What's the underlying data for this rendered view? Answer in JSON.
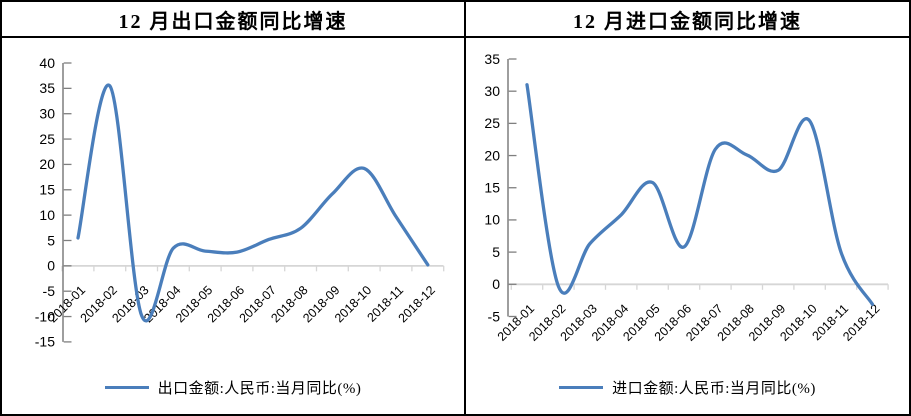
{
  "figure": {
    "background": "#ffffff",
    "border_color": "#000000",
    "line_color": "#4a7ebb",
    "axis_color": "#7f7f7f",
    "gridline_color": "#d6d6d6",
    "label_color": "#000000"
  },
  "chart_data": [
    {
      "type": "line",
      "title": "12 月出口金额同比增速",
      "legend": "出口金额:人民币:当月同比(%)",
      "legend_position": "bottom",
      "categories": [
        "2018-01",
        "2018-02",
        "2018-03",
        "2018-04",
        "2018-05",
        "2018-06",
        "2018-07",
        "2018-08",
        "2018-09",
        "2018-10",
        "2018-11",
        "2018-12"
      ],
      "values": [
        5.5,
        35.5,
        -9.8,
        3.5,
        2.9,
        2.7,
        5.2,
        7.4,
        14.2,
        19.2,
        9.7,
        0.2
      ],
      "ylim": [
        -15,
        40
      ],
      "yticks": [
        40,
        35,
        30,
        25,
        20,
        15,
        10,
        5,
        0,
        -5,
        -10,
        -15
      ],
      "xlabel": "",
      "ylabel": "",
      "grid": "zero-line-only",
      "smooth": true
    },
    {
      "type": "line",
      "title": "12 月进口金额同比增速",
      "legend": "进口金额:人民币:当月同比(%)",
      "legend_position": "bottom",
      "categories": [
        "2018-01",
        "2018-02",
        "2018-03",
        "2018-04",
        "2018-05",
        "2018-06",
        "2018-07",
        "2018-08",
        "2018-09",
        "2018-10",
        "2018-11",
        "2018-12"
      ],
      "values": [
        31.0,
        -0.3,
        6.3,
        10.8,
        15.8,
        5.8,
        21.0,
        20.1,
        17.7,
        25.4,
        5.0,
        -3.1
      ],
      "ylim": [
        -5,
        35
      ],
      "yticks": [
        35,
        30,
        25,
        20,
        15,
        10,
        5,
        0,
        -5
      ],
      "xlabel": "",
      "ylabel": "",
      "grid": "zero-line-only",
      "smooth": true
    }
  ]
}
